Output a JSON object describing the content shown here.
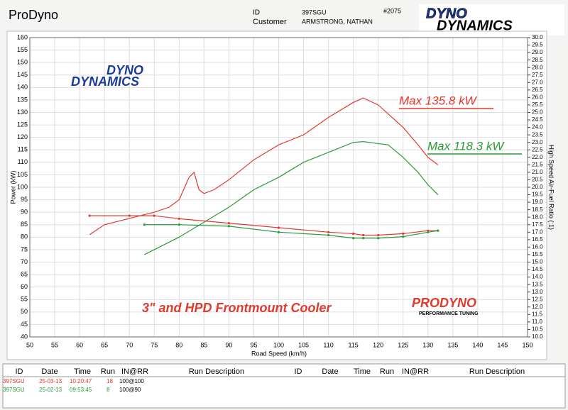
{
  "header": {
    "app": "ProDyno",
    "id_label": "ID",
    "id": "397SGU",
    "customer_label": "Customer",
    "customer": "ARMSTRONG, NATHAN",
    "job": "#2075",
    "logo": [
      "DYNO",
      "DYNAMICS"
    ]
  },
  "chart_data": {
    "type": "line",
    "xlabel": "Road Speed (km/h)",
    "ylabel": "Power (kW)",
    "y2label": "High Speed Air-Fuel Ratio (:1)",
    "annotations": [
      "Max 135.8 kW",
      "Max 118.3 kW",
      "3\" and HPD Frontmount Cooler"
    ],
    "logo": [
      "DYNO",
      "DYNAMICS"
    ],
    "logo2": [
      "PRODYNO",
      "PERFORMANCE TUNING"
    ],
    "xlim": [
      50,
      150
    ],
    "xticks": [
      50,
      55,
      60,
      65,
      70,
      75,
      80,
      85,
      90,
      95,
      100,
      105,
      110,
      115,
      120,
      125,
      130,
      135,
      140,
      145,
      150
    ],
    "ylim": [
      40,
      160
    ],
    "yticks": [
      40,
      45,
      50,
      55,
      60,
      65,
      70,
      75,
      80,
      85,
      90,
      95,
      100,
      105,
      110,
      115,
      120,
      125,
      130,
      135,
      140,
      145,
      150,
      155,
      160
    ],
    "y2lim": [
      10,
      30
    ],
    "y2ticks": [
      {
        "value": 10,
        "label": "10.0"
      },
      10.5,
      {
        "value": 11,
        "label": "11.0"
      },
      11.5,
      {
        "value": 12,
        "label": "12.0"
      },
      12.5,
      {
        "value": 13,
        "label": "13.0"
      },
      13.5,
      {
        "value": 14,
        "label": "14.0"
      },
      14.5,
      {
        "value": 15,
        "label": "15.0"
      },
      15.5,
      {
        "value": 16,
        "label": "16.0"
      },
      16.5,
      {
        "value": 17,
        "label": "17.0"
      },
      17.5,
      {
        "value": 18,
        "label": "18.0"
      },
      18.5,
      {
        "value": 19,
        "label": "19.0"
      },
      19.5,
      {
        "value": 20,
        "label": "20.0"
      },
      20.5,
      {
        "value": 21,
        "label": "21.0"
      },
      21.5,
      {
        "value": 22,
        "label": "22.0"
      },
      22.5,
      {
        "value": 23,
        "label": "23.0"
      },
      23.5,
      {
        "value": 24,
        "label": "24.0"
      },
      24.5,
      {
        "value": 25,
        "label": "25.0"
      },
      25.5,
      {
        "value": 26,
        "label": "26.0"
      },
      26.5,
      {
        "value": 27,
        "label": "27.0"
      },
      27.5,
      {
        "value": 28,
        "label": "28.0"
      },
      28.5,
      {
        "value": 29,
        "label": "29.0"
      },
      29.5,
      {
        "value": 30,
        "label": "30.0"
      }
    ],
    "grid": true,
    "series": [
      {
        "color": "#e03a2f",
        "x": [
          62,
          65,
          70,
          75,
          78,
          80,
          82,
          83,
          84,
          85,
          87,
          90,
          95,
          100,
          105,
          110,
          115,
          117,
          120,
          125,
          128,
          130,
          132
        ],
        "values": [
          81,
          85,
          87.5,
          90,
          92,
          95,
          104,
          106,
          99,
          97.5,
          99,
          103,
          111,
          117,
          121,
          128,
          134,
          135.8,
          133,
          124,
          117,
          112,
          109
        ]
      },
      {
        "color": "#2a9a3a",
        "x": [
          73,
          75,
          80,
          85,
          90,
          95,
          100,
          105,
          110,
          115,
          117,
          120,
          122,
          125,
          128,
          130,
          132
        ],
        "values": [
          73,
          75,
          80,
          86,
          92,
          99,
          104,
          110,
          114,
          118,
          118.3,
          117.5,
          117,
          112,
          106,
          101,
          97
        ]
      },
      {
        "color": "#e03a2f",
        "axis": "y2",
        "x": [
          62,
          70,
          75,
          80,
          90,
          100,
          110,
          115,
          117,
          120,
          125,
          130,
          132
        ],
        "values": [
          18.1,
          18.1,
          18.1,
          17.9,
          17.6,
          17.3,
          17.0,
          16.9,
          16.8,
          16.8,
          16.9,
          17.1,
          17.1
        ]
      },
      {
        "color": "#2a9a3a",
        "axis": "y2",
        "x": [
          73,
          80,
          90,
          100,
          110,
          115,
          117,
          120,
          125,
          130,
          132
        ],
        "values": [
          17.5,
          17.5,
          17.4,
          17.0,
          16.8,
          16.6,
          16.6,
          16.6,
          16.7,
          17.0,
          17.1
        ]
      }
    ]
  },
  "table": {
    "columns": [
      "ID",
      "Date",
      "Time",
      "Run",
      "IN@RR",
      "Run Description",
      "ID",
      "Date",
      "Time",
      "Run",
      "IN@RR",
      "Run Description"
    ],
    "rows": [
      [
        "397SGU",
        "25-03-13",
        "10:20:47",
        "18",
        "100@100"
      ],
      [
        "397SGU",
        "25-02-13",
        "09:53:45",
        "8",
        "100@90"
      ]
    ]
  }
}
